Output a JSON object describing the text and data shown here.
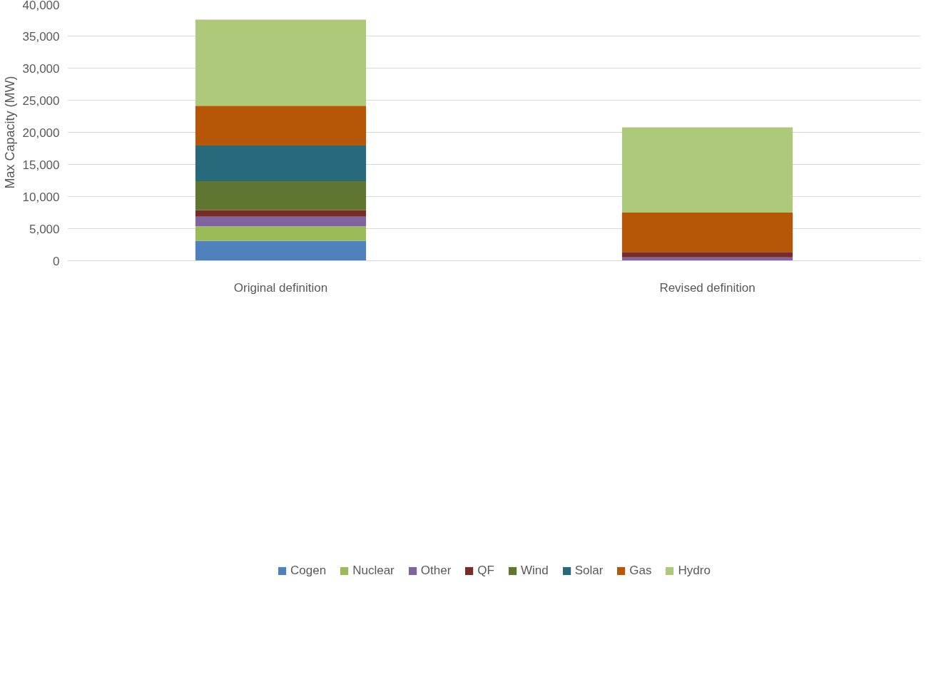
{
  "chart_data": {
    "type": "bar",
    "stacked": true,
    "ylabel": "Max Capacity (MW)",
    "categories": [
      "Original definition",
      "Revised definition"
    ],
    "series": [
      {
        "name": "Cogen",
        "color": "#4f81bd",
        "values": [
          3100,
          0
        ]
      },
      {
        "name": "Nuclear",
        "color": "#9bbb59",
        "values": [
          2250,
          0
        ]
      },
      {
        "name": "Other",
        "color": "#8064a2",
        "values": [
          1500,
          520
        ]
      },
      {
        "name": "QF",
        "color": "#772c2a",
        "values": [
          1000,
          840
        ]
      },
      {
        "name": "Wind",
        "color": "#5f7530",
        "values": [
          4550,
          0
        ]
      },
      {
        "name": "Solar",
        "color": "#276a7c",
        "values": [
          5550,
          0
        ]
      },
      {
        "name": "Gas",
        "color": "#b65708",
        "values": [
          6200,
          6130
        ]
      },
      {
        "name": "Hydro",
        "color": "#afc97a",
        "values": [
          13400,
          13300
        ]
      }
    ],
    "ylim": [
      0,
      40000
    ],
    "yticks": [
      {
        "value": 0,
        "label": "0"
      },
      {
        "value": 5000,
        "label": "5,000"
      },
      {
        "value": 10000,
        "label": "10,000"
      },
      {
        "value": 15000,
        "label": "15,000"
      },
      {
        "value": 20000,
        "label": "20,000"
      },
      {
        "value": 25000,
        "label": "25,000"
      },
      {
        "value": 30000,
        "label": "30,000"
      },
      {
        "value": 35000,
        "label": "35,000"
      },
      {
        "value": 40000,
        "label": "40,000"
      }
    ],
    "grid": "y",
    "legend": "bottom"
  }
}
